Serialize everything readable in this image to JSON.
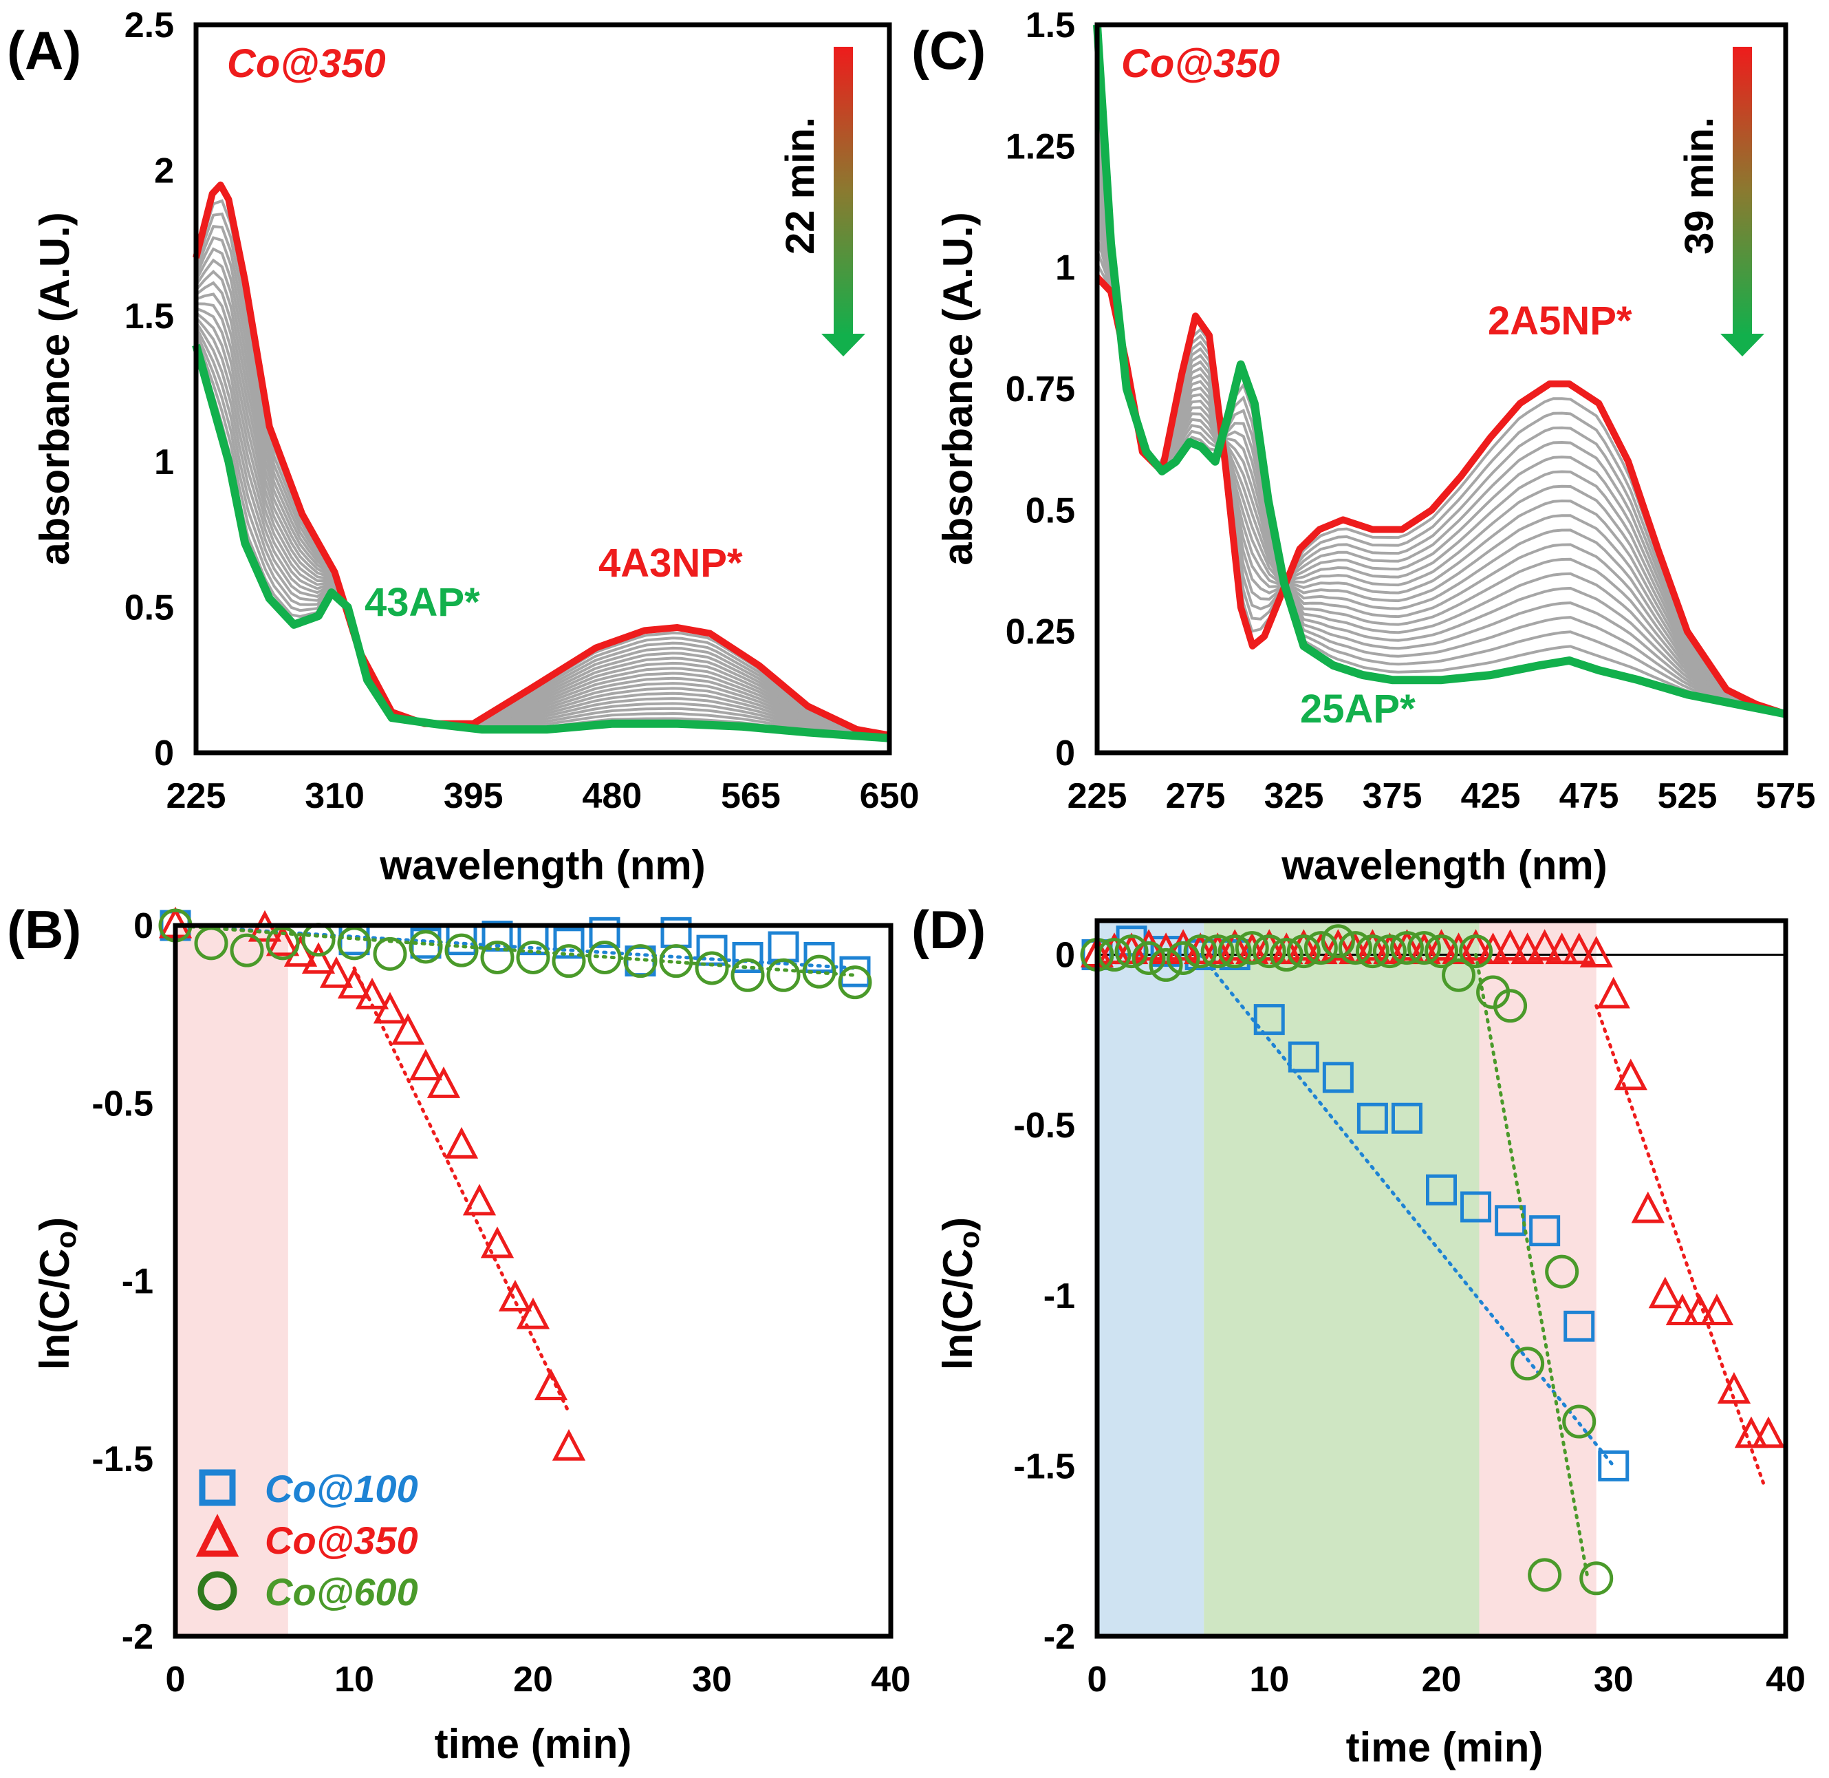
{
  "colors": {
    "red": "#ee1c1c",
    "green": "#12b04c",
    "gray": "#a6a6a6",
    "blue": "#1e83d4",
    "darkgreen": "#4a9a2a",
    "shade_red": "#fbe0e0",
    "shade_blue": "#cfe3f2",
    "shade_green": "#cfe6c3"
  },
  "chart_data": [
    {
      "id": "A",
      "panel_label": "(A)",
      "type": "line",
      "title": "",
      "xlabel": "wavelength (nm)",
      "ylabel": "absorbance (A.U.)",
      "xlim": [
        225,
        650
      ],
      "ylim": [
        0,
        2.5
      ],
      "xticks": [
        "225",
        "310",
        "395",
        "480",
        "565",
        "650"
      ],
      "yticks": [
        "0",
        "0.5",
        "1",
        "1.5",
        "2",
        "2.5"
      ],
      "sample_label": "Co@350",
      "time_label": "22 min.",
      "annotations": [
        {
          "text": "43AP*",
          "color": "green"
        },
        {
          "text": "4A3NP*",
          "color": "red"
        }
      ],
      "series": [
        {
          "name": "initial (4A3NP)",
          "color": "red",
          "x": [
            225,
            235,
            240,
            245,
            255,
            270,
            290,
            300,
            310,
            325,
            345,
            365,
            395,
            430,
            470,
            500,
            520,
            540,
            570,
            600,
            630,
            650
          ],
          "y": [
            1.7,
            1.92,
            1.95,
            1.9,
            1.62,
            1.12,
            0.82,
            0.72,
            0.62,
            0.35,
            0.14,
            0.1,
            0.1,
            0.22,
            0.36,
            0.42,
            0.43,
            0.41,
            0.3,
            0.16,
            0.08,
            0.06
          ]
        },
        {
          "name": "final (43AP)",
          "color": "green",
          "x": [
            225,
            235,
            245,
            255,
            270,
            285,
            300,
            308,
            318,
            330,
            345,
            370,
            400,
            440,
            480,
            520,
            560,
            600,
            650
          ],
          "y": [
            1.4,
            1.2,
            1.0,
            0.72,
            0.53,
            0.44,
            0.47,
            0.55,
            0.5,
            0.25,
            0.12,
            0.1,
            0.08,
            0.08,
            0.1,
            0.1,
            0.09,
            0.07,
            0.05
          ]
        }
      ]
    },
    {
      "id": "B",
      "panel_label": "(B)",
      "type": "scatter",
      "xlabel": "time (min)",
      "ylabel": "ln(C/Co)",
      "xlim": [
        0,
        40
      ],
      "ylim": [
        -2,
        0
      ],
      "xticks": [
        "0",
        "10",
        "20",
        "30",
        "40"
      ],
      "yticks": [
        "0",
        "-0.5",
        "-1",
        "-1.5",
        "-2"
      ],
      "shaded_regions": [
        {
          "x0": 0,
          "x1": 6.3,
          "color": "shade_red"
        }
      ],
      "legend": [
        {
          "name": "Co@100",
          "marker": "square",
          "color": "blue"
        },
        {
          "name": "Co@350",
          "marker": "triangle",
          "color": "red"
        },
        {
          "name": "Co@600",
          "marker": "circle",
          "color": "darkgreen"
        }
      ],
      "series": [
        {
          "name": "Co@100",
          "marker": "square",
          "color": "blue",
          "x": [
            0,
            10,
            14,
            16,
            18,
            20,
            22,
            24,
            26,
            28,
            30,
            32,
            34,
            36,
            38
          ],
          "y": [
            0,
            -0.04,
            -0.05,
            -0.04,
            -0.03,
            -0.04,
            -0.05,
            -0.02,
            -0.1,
            -0.02,
            -0.07,
            -0.09,
            -0.06,
            -0.09,
            -0.13
          ],
          "fit": [
            [
              0,
              0
            ],
            [
              38,
              -0.12
            ]
          ]
        },
        {
          "name": "Co@350",
          "marker": "triangle",
          "color": "red",
          "x": [
            0,
            5,
            6,
            7,
            8,
            9,
            10,
            11,
            12,
            13,
            14,
            15,
            16,
            17,
            18,
            19,
            20,
            21,
            22
          ],
          "y": [
            0,
            -0.01,
            -0.05,
            -0.08,
            -0.1,
            -0.14,
            -0.17,
            -0.2,
            -0.24,
            -0.3,
            -0.4,
            -0.45,
            -0.62,
            -0.78,
            -0.9,
            -1.05,
            -1.1,
            -1.3,
            -1.47
          ],
          "fit": [
            [
              10,
              -0.12
            ],
            [
              22,
              -1.37
            ]
          ]
        },
        {
          "name": "Co@600",
          "marker": "circle",
          "color": "darkgreen",
          "x": [
            0,
            2,
            4,
            6,
            8,
            10,
            12,
            14,
            16,
            18,
            20,
            22,
            24,
            26,
            28,
            30,
            32,
            34,
            36,
            38
          ],
          "y": [
            0,
            -0.05,
            -0.07,
            -0.05,
            -0.04,
            -0.05,
            -0.08,
            -0.06,
            -0.07,
            -0.09,
            -0.09,
            -0.1,
            -0.09,
            -0.1,
            -0.1,
            -0.12,
            -0.14,
            -0.14,
            -0.13,
            -0.16
          ],
          "fit": [
            [
              0,
              0
            ],
            [
              38,
              -0.14
            ]
          ]
        }
      ]
    },
    {
      "id": "C",
      "panel_label": "(C)",
      "type": "line",
      "xlabel": "wavelength (nm)",
      "ylabel": "absorbance (A.U.)",
      "xlim": [
        225,
        575
      ],
      "ylim": [
        0,
        1.5
      ],
      "xticks": [
        "225",
        "275",
        "325",
        "375",
        "425",
        "475",
        "525",
        "575"
      ],
      "yticks": [
        "0",
        "0.25",
        "0.5",
        "0.75",
        "1",
        "1.25",
        "1.5"
      ],
      "sample_label": "Co@350",
      "time_label": "39 min.",
      "annotations": [
        {
          "text": "2A5NP*",
          "color": "red"
        },
        {
          "text": "25AP*",
          "color": "green"
        }
      ],
      "series": [
        {
          "name": "initial (2A5NP)",
          "color": "red",
          "x": [
            225,
            232,
            240,
            248,
            258,
            268,
            275,
            282,
            290,
            298,
            304,
            310,
            318,
            328,
            338,
            350,
            365,
            380,
            395,
            410,
            425,
            440,
            455,
            465,
            480,
            495,
            510,
            525,
            545,
            560,
            575
          ],
          "y": [
            0.98,
            0.95,
            0.8,
            0.62,
            0.58,
            0.78,
            0.9,
            0.86,
            0.6,
            0.3,
            0.22,
            0.24,
            0.32,
            0.42,
            0.46,
            0.48,
            0.46,
            0.46,
            0.5,
            0.57,
            0.65,
            0.72,
            0.76,
            0.76,
            0.72,
            0.6,
            0.42,
            0.25,
            0.13,
            0.1,
            0.08
          ]
        },
        {
          "name": "final (25AP)",
          "color": "green",
          "x": [
            225,
            232,
            240,
            250,
            258,
            265,
            272,
            278,
            285,
            292,
            298,
            305,
            312,
            320,
            330,
            345,
            360,
            375,
            400,
            425,
            450,
            465,
            480,
            500,
            525,
            550,
            575
          ],
          "y": [
            1.5,
            1.05,
            0.75,
            0.62,
            0.58,
            0.6,
            0.64,
            0.63,
            0.6,
            0.7,
            0.8,
            0.72,
            0.52,
            0.35,
            0.22,
            0.18,
            0.16,
            0.15,
            0.15,
            0.16,
            0.18,
            0.19,
            0.17,
            0.15,
            0.12,
            0.1,
            0.08
          ]
        }
      ]
    },
    {
      "id": "D",
      "panel_label": "(D)",
      "type": "scatter",
      "xlabel": "time (min)",
      "ylabel": "ln(C/Co)",
      "xlim": [
        0,
        40
      ],
      "ylim": [
        -2,
        0.1
      ],
      "xticks": [
        "0",
        "10",
        "20",
        "30",
        "40"
      ],
      "yticks": [
        "0",
        "-0.5",
        "-1",
        "-1.5",
        "-2"
      ],
      "shaded_regions": [
        {
          "x0": 0,
          "x1": 6.2,
          "color": "shade_blue"
        },
        {
          "x0": 6.2,
          "x1": 22.2,
          "color": "shade_green"
        },
        {
          "x0": 22.2,
          "x1": 29,
          "color": "shade_red"
        }
      ],
      "series": [
        {
          "name": "Co@100",
          "marker": "square",
          "color": "blue",
          "x": [
            0,
            2,
            4,
            6,
            8,
            10,
            12,
            14,
            16,
            18,
            20,
            22,
            24,
            26,
            28,
            30
          ],
          "y": [
            0,
            0.04,
            0.01,
            0,
            0,
            -0.19,
            -0.3,
            -0.36,
            -0.48,
            -0.48,
            -0.69,
            -0.74,
            -0.78,
            -0.81,
            -1.09,
            -1.5
          ],
          "fit": [
            [
              6,
              0
            ],
            [
              30,
              -1.5
            ]
          ]
        },
        {
          "name": "Co@350",
          "marker": "triangle",
          "color": "red",
          "x": [
            0,
            1,
            2,
            3,
            4,
            5,
            6,
            7,
            8,
            9,
            10,
            11,
            12,
            13,
            14,
            15,
            16,
            17,
            18,
            19,
            20,
            21,
            22,
            23,
            24,
            25,
            26,
            27,
            28,
            29,
            30,
            31,
            32,
            33,
            34,
            35,
            36,
            37,
            38,
            39
          ],
          "y": [
            0,
            0.01,
            0.01,
            0.02,
            0.01,
            0.02,
            0.01,
            0.01,
            0.02,
            0.01,
            0.02,
            0.01,
            0.02,
            0.01,
            0.02,
            0.01,
            0.02,
            0.01,
            0.02,
            0.01,
            0.02,
            0.01,
            0.02,
            0.01,
            0.02,
            0.01,
            0.02,
            0.01,
            0.01,
            0.0,
            -0.12,
            -0.36,
            -0.75,
            -1.0,
            -1.05,
            -1.05,
            -1.05,
            -1.28,
            -1.41,
            -1.41
          ],
          "fit": [
            [
              29,
              -0.15
            ],
            [
              38.7,
              -1.55
            ]
          ]
        },
        {
          "name": "Co@600",
          "marker": "circle",
          "color": "darkgreen",
          "x": [
            0,
            1,
            2,
            3,
            4,
            5,
            6,
            7,
            8,
            9,
            10,
            11,
            12,
            13,
            14,
            15,
            16,
            17,
            18,
            19,
            20,
            21,
            22,
            23,
            24,
            25,
            26,
            27,
            28,
            29
          ],
          "y": [
            0,
            0,
            0.01,
            -0.01,
            -0.03,
            -0.01,
            0.01,
            0.01,
            0.01,
            0.02,
            0.01,
            0.0,
            0.01,
            0.02,
            0.04,
            0.02,
            0.01,
            0.01,
            0.02,
            0.02,
            0.01,
            -0.06,
            0.01,
            -0.11,
            -0.15,
            -1.2,
            -1.82,
            -0.93,
            -1.37,
            -1.83
          ],
          "fit": [
            [
              22,
              0.0
            ],
            [
              28.5,
              -1.83
            ]
          ]
        }
      ]
    }
  ]
}
